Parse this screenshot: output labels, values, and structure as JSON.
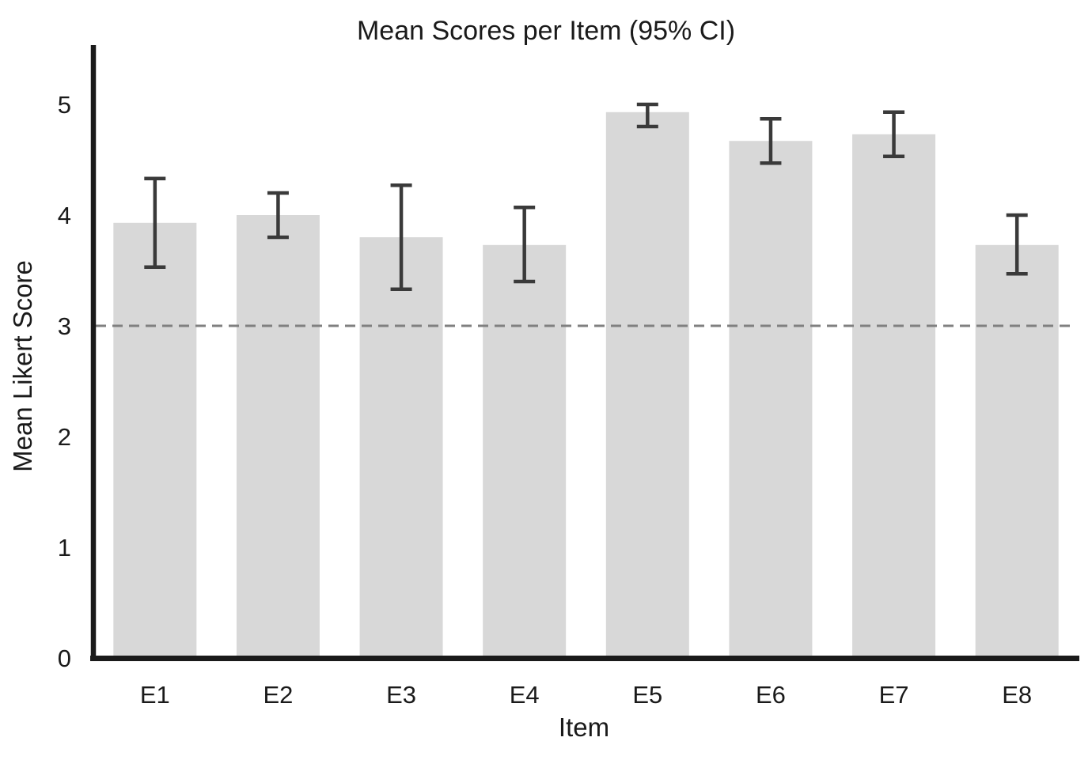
{
  "chart_data": {
    "type": "bar",
    "title": "Mean Scores per Item (95% CI)",
    "xlabel": "Item",
    "ylabel": "Mean Likert Score",
    "categories": [
      "E1",
      "E2",
      "E3",
      "E4",
      "E5",
      "E6",
      "E7",
      "E8"
    ],
    "series": [
      {
        "name": "Mean Likert Score",
        "values": [
          3.93,
          4.0,
          3.8,
          3.73,
          4.93,
          4.67,
          4.73,
          3.73
        ]
      }
    ],
    "error_bars": {
      "label": "95% CI",
      "ci_low": [
        3.53,
        3.8,
        3.33,
        3.4,
        4.8,
        4.47,
        4.53,
        3.47
      ],
      "ci_high": [
        4.33,
        4.2,
        4.27,
        4.07,
        5.0,
        4.87,
        4.93,
        4.0
      ]
    },
    "yticks": [
      0,
      1,
      2,
      3,
      4,
      5
    ],
    "ylim": [
      0,
      5.5
    ],
    "reference_line": {
      "y": 3,
      "style": "dashed"
    },
    "grid": false,
    "legend": false,
    "colors": {
      "bar_fill": "#d8d8d8",
      "error_bar": "#3a3a3a",
      "axis": "#1a1a1a",
      "text": "#1a1a1a",
      "reference_line": "#808080",
      "background": "#ffffff"
    }
  }
}
